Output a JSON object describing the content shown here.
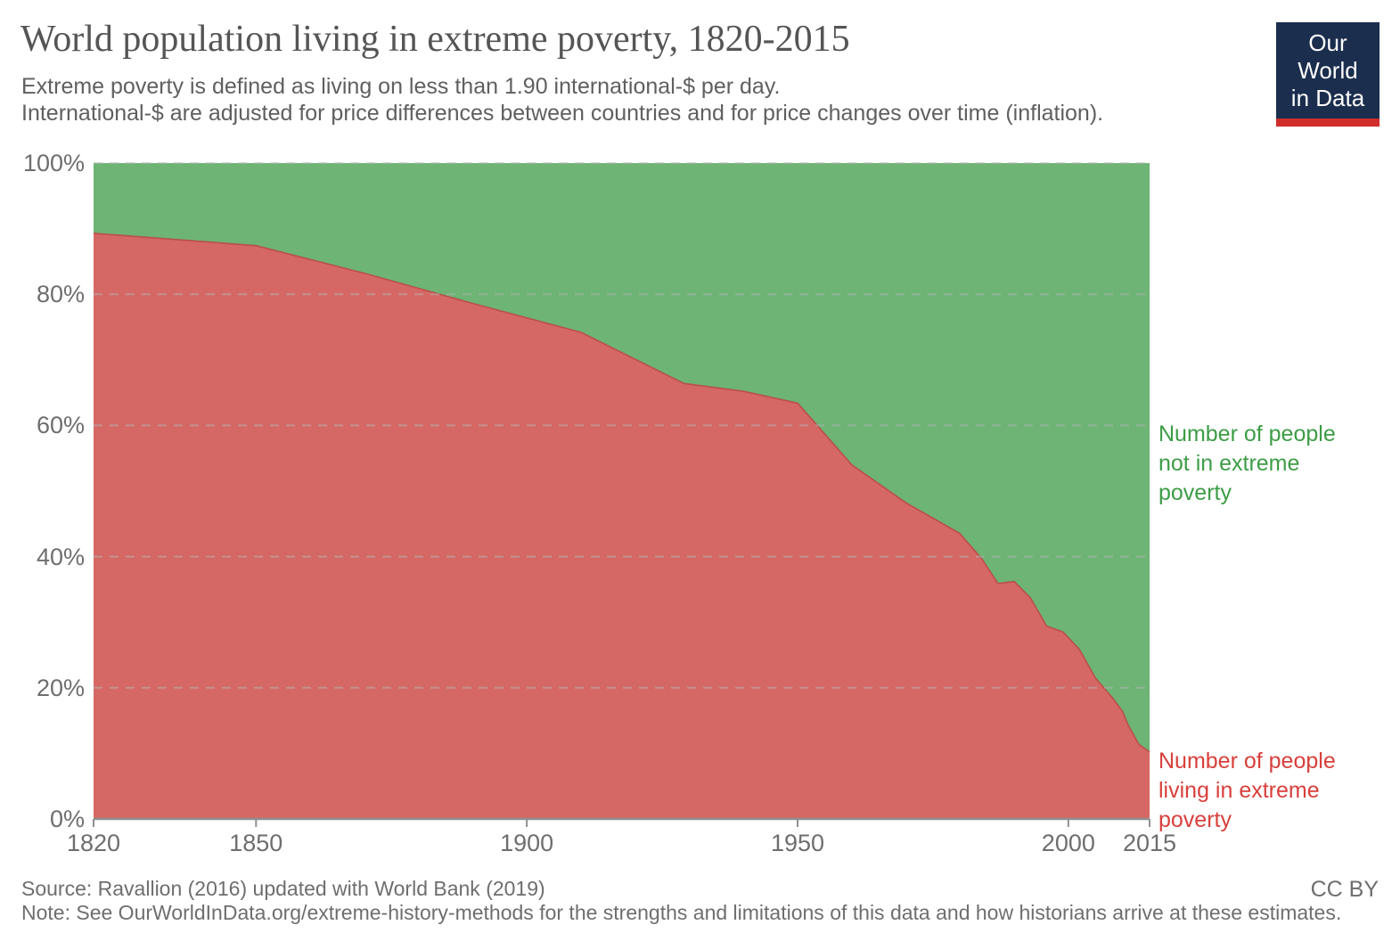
{
  "header": {
    "title": "World population living in extreme poverty, 1820-2015",
    "subtitle_line1": "Extreme poverty is defined as living on less than 1.90 international-$ per day.",
    "subtitle_line2": "International-$ are adjusted for price differences between countries and for price changes over time (inflation).",
    "logo": {
      "line1": "Our World",
      "line2": "in Data",
      "bg_color": "#1B2E4E",
      "accent_color": "#D12D2B"
    }
  },
  "chart_data": {
    "type": "area",
    "stacked": true,
    "title": "World population living in extreme poverty, 1820-2015",
    "x": [
      1820,
      1850,
      1870,
      1890,
      1910,
      1929,
      1940,
      1950,
      1960,
      1970,
      1980,
      1981,
      1984,
      1987,
      1990,
      1993,
      1996,
      1999,
      2002,
      2005,
      2008,
      2010,
      2011,
      2012,
      2013,
      2015
    ],
    "series": [
      {
        "name": "Number of people living in extreme poverty",
        "color": "#D56864",
        "line_color": "#BC4E48",
        "label_color": "#D8403C",
        "values": [
          89.3,
          87.4,
          83.2,
          78.6,
          74.2,
          66.4,
          65.2,
          63.4,
          54.0,
          48.2,
          43.5,
          42.5,
          39.7,
          35.9,
          36.2,
          33.7,
          29.4,
          28.5,
          25.9,
          21.5,
          18.6,
          16.4,
          14.4,
          12.9,
          11.4,
          10.2
        ]
      },
      {
        "name": "Number of people not in extreme poverty",
        "color": "#6DB475",
        "label_color": "#3C9D46",
        "values": [
          10.7,
          12.6,
          16.8,
          21.4,
          25.8,
          33.6,
          34.8,
          36.6,
          46.0,
          51.8,
          56.5,
          57.5,
          60.3,
          64.1,
          63.8,
          66.3,
          70.6,
          71.5,
          74.1,
          78.5,
          81.4,
          83.6,
          85.6,
          87.1,
          88.6,
          89.8
        ]
      }
    ],
    "xlim": [
      1820,
      2015
    ],
    "ylim": [
      0,
      100
    ],
    "x_ticks": [
      {
        "value": 1820,
        "label": "1820"
      },
      {
        "value": 1850,
        "label": "1850"
      },
      {
        "value": 1900,
        "label": "1900"
      },
      {
        "value": 1950,
        "label": "1950"
      },
      {
        "value": 2000,
        "label": "2000"
      },
      {
        "value": 2015,
        "label": "2015"
      }
    ],
    "y_ticks": [
      {
        "value": 0,
        "label": "0%"
      },
      {
        "value": 20,
        "label": "20%"
      },
      {
        "value": 40,
        "label": "40%"
      },
      {
        "value": 60,
        "label": "60%"
      },
      {
        "value": 80,
        "label": "80%"
      },
      {
        "value": 100,
        "label": "100%"
      }
    ],
    "grid": "dashed-horizontal",
    "legend_position": "right-annotations"
  },
  "annotations": {
    "not_in_poverty_lines": [
      "Number of people",
      "not in extreme",
      "poverty"
    ],
    "in_poverty_lines": [
      "Number of people",
      "living in extreme",
      "poverty"
    ]
  },
  "footer": {
    "source": "Source: Ravallion (2016) updated with World Bank (2019)",
    "note": "Note: See OurWorldInData.org/extreme-history-methods for the strengths and limitations of this data and how historians arrive at these estimates.",
    "license": "CC BY"
  }
}
